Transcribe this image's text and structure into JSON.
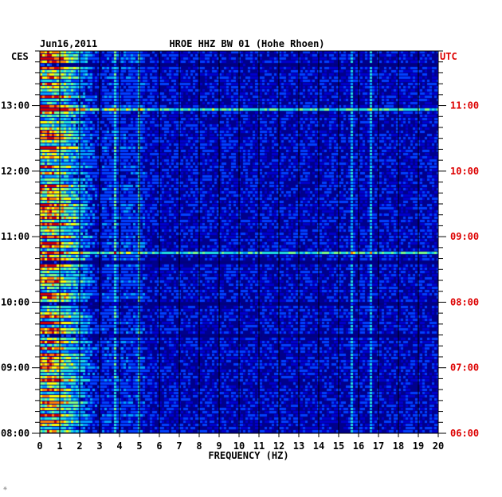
{
  "chart_data": {
    "type": "heatmap",
    "date": "Jun16,2011",
    "title": "HROE HHZ BW 01 (Hohe Rhoen)",
    "left_timezone": "CES",
    "right_timezone": "UTC",
    "xlabel": "FREQUENCY (HZ)",
    "xlim": [
      0,
      20
    ],
    "x_ticks": [
      "0",
      "1",
      "2",
      "3",
      "4",
      "5",
      "6",
      "7",
      "8",
      "9",
      "10",
      "11",
      "12",
      "13",
      "14",
      "15",
      "16",
      "17",
      "18",
      "19",
      "20"
    ],
    "left_time_ticks": [
      "08:00",
      "09:00",
      "10:00",
      "11:00",
      "12:00",
      "13:00"
    ],
    "right_time_ticks": [
      "06:00",
      "07:00",
      "08:00",
      "09:00",
      "10:00",
      "11:00"
    ],
    "time_range_ces": [
      "08:00",
      "13:50"
    ],
    "colorscale": [
      "#000080",
      "#0000cc",
      "#0040ff",
      "#00a0ff",
      "#20e0e0",
      "#80ff80",
      "#ffff00",
      "#ff8000",
      "#d00000"
    ],
    "background_color": "#00008c",
    "grid_color": "#000000",
    "persistent_lines_hz": [
      3.7,
      4.9,
      15.6,
      16.6
    ],
    "strong_events_ces": [
      "10:46",
      "12:58"
    ]
  },
  "footer_mark": "☼"
}
